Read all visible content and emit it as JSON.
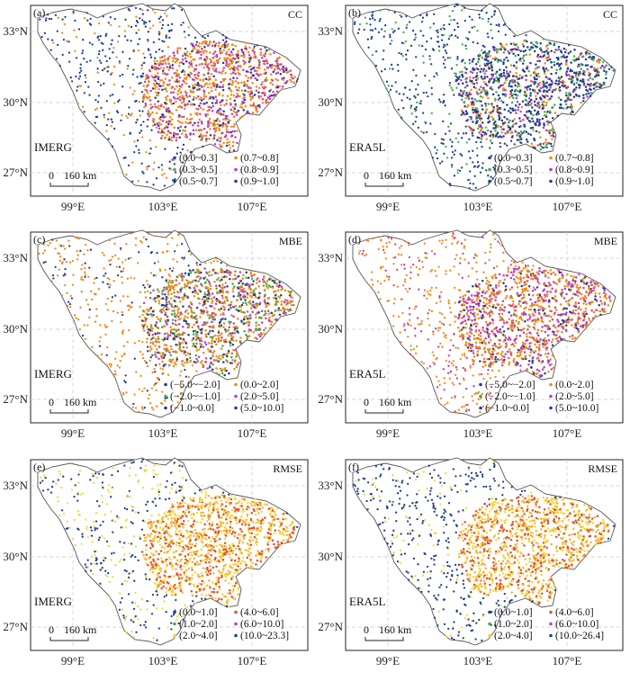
{
  "figure": {
    "lat_ticks": [
      "33°N",
      "30°N",
      "27°N"
    ],
    "lon_ticks": [
      "99°E",
      "103°E",
      "107°E"
    ],
    "scale_bar": {
      "zero": "0",
      "distance": "160 km"
    }
  },
  "palette": {
    "navy": "#1f3f8f",
    "green": "#3fae4a",
    "purple": "#c03ac0",
    "orange": "#f08a16",
    "lightorange": "#f4b43c",
    "yellow": "#f7d637",
    "red": "#e0522a"
  },
  "panels": [
    {
      "panel_label": "(a)",
      "metric": "CC",
      "product": "IMERG",
      "legend": [
        {
          "label": "(0.0~0.3]",
          "color": "#1f3f8f"
        },
        {
          "label": "(0.7~0.8]",
          "color": "#f08a16"
        },
        {
          "label": "(0.3~0.5]",
          "color": "#3fae4a"
        },
        {
          "label": "(0.8~0.9]",
          "color": "#c03ac0"
        },
        {
          "label": "(0.5~0.7]",
          "color": "#1f3f8f"
        },
        {
          "label": "(0.9~1.0]",
          "color": "#1f3f8f"
        }
      ],
      "point_mix": {
        "west": [
          "#1f3f8f",
          "#1f3f8f",
          "#f08a16",
          "#1f3f8f"
        ],
        "east": [
          "#f08a16",
          "#f08a16",
          "#c03ac0",
          "#1f3f8f",
          "#f08a16",
          "#c03ac0"
        ]
      }
    },
    {
      "panel_label": "(b)",
      "metric": "CC",
      "product": "ERA5L",
      "legend": [
        {
          "label": "(0.0~0.3]",
          "color": "#1f3f8f"
        },
        {
          "label": "(0.7~0.8]",
          "color": "#f08a16"
        },
        {
          "label": "(0.3~0.5]",
          "color": "#3fae4a"
        },
        {
          "label": "(0.8~0.9]",
          "color": "#c03ac0"
        },
        {
          "label": "(0.5~0.7]",
          "color": "#1f3f8f"
        },
        {
          "label": "(0.9~1.0]",
          "color": "#1f3f8f"
        }
      ],
      "point_mix": {
        "west": [
          "#1f3f8f",
          "#1f3f8f",
          "#1f3f8f",
          "#3fae4a"
        ],
        "east": [
          "#1f3f8f",
          "#1f3f8f",
          "#1f3f8f",
          "#f08a16",
          "#c03ac0",
          "#3fae4a"
        ]
      }
    },
    {
      "panel_label": "(c)",
      "metric": "MBE",
      "product": "IMERG",
      "legend": [
        {
          "label": "(−5.0~−2.0]",
          "color": "#1f3f8f"
        },
        {
          "label": "(0.0~2.0]",
          "color": "#f08a16"
        },
        {
          "label": "(−2.0~−1.0]",
          "color": "#3fae4a"
        },
        {
          "label": "(2.0~5.0]",
          "color": "#c03ac0"
        },
        {
          "label": "(−1.0~0.0]",
          "color": "#1f3f8f"
        },
        {
          "label": "(5.0~10.0]",
          "color": "#1f3f8f"
        }
      ],
      "point_mix": {
        "west": [
          "#f08a16",
          "#f08a16",
          "#f08a16",
          "#1f3f8f"
        ],
        "east": [
          "#f08a16",
          "#f08a16",
          "#f08a16",
          "#1f3f8f",
          "#c03ac0",
          "#3fae4a"
        ]
      }
    },
    {
      "panel_label": "(d)",
      "metric": "MBE",
      "product": "ERA5L",
      "legend": [
        {
          "label": "(−5.0~−2.0]",
          "color": "#1f3f8f"
        },
        {
          "label": "(0.0~2.0]",
          "color": "#f08a16"
        },
        {
          "label": "(−2.0~−1.0]",
          "color": "#3fae4a"
        },
        {
          "label": "(2.0~5.0]",
          "color": "#c03ac0"
        },
        {
          "label": "(−1.0~0.0]",
          "color": "#1f3f8f"
        },
        {
          "label": "(5.0~10.0]",
          "color": "#1f3f8f"
        }
      ],
      "point_mix": {
        "west": [
          "#f08a16",
          "#f08a16",
          "#f08a16",
          "#c03ac0"
        ],
        "east": [
          "#f08a16",
          "#f08a16",
          "#c03ac0",
          "#1f3f8f",
          "#f08a16",
          "#c03ac0"
        ]
      }
    },
    {
      "panel_label": "(e)",
      "metric": "RMSE",
      "product": "IMERG",
      "legend": [
        {
          "label": "(0.0~1.0]",
          "color": "#1f3f8f"
        },
        {
          "label": "(4.0~6.0]",
          "color": "#e0522a"
        },
        {
          "label": "(1.0~2.0]",
          "color": "#3fae4a"
        },
        {
          "label": "(6.0~10.0]",
          "color": "#c03ac0"
        },
        {
          "label": "(2.0~4.0]",
          "color": "#f7d637"
        },
        {
          "label": "(10.0~23.3]",
          "color": "#1f3f8f"
        }
      ],
      "point_mix": {
        "west": [
          "#f7d637",
          "#1f3f8f",
          "#f7d637",
          "#1f3f8f"
        ],
        "east": [
          "#f7d637",
          "#f4b43c",
          "#e0522a",
          "#f7d637",
          "#f4b43c",
          "#e0522a"
        ]
      }
    },
    {
      "panel_label": "(f)",
      "metric": "RMSE",
      "product": "ERA5L",
      "legend": [
        {
          "label": "(0.0~1.0]",
          "color": "#1f3f8f"
        },
        {
          "label": "(4.0~6.0]",
          "color": "#e0522a"
        },
        {
          "label": "(1.0~2.0]",
          "color": "#3fae4a"
        },
        {
          "label": "(6.0~10.0]",
          "color": "#c03ac0"
        },
        {
          "label": "(2.0~4.0]",
          "color": "#f7d637"
        },
        {
          "label": "(10.0~26.4]",
          "color": "#1f3f8f"
        }
      ],
      "point_mix": {
        "west": [
          "#1f3f8f",
          "#1f3f8f",
          "#f7d637",
          "#1f3f8f"
        ],
        "east": [
          "#f7d637",
          "#f4b43c",
          "#e0522a",
          "#f7d637",
          "#f4b43c",
          "#e0522a"
        ]
      }
    }
  ]
}
